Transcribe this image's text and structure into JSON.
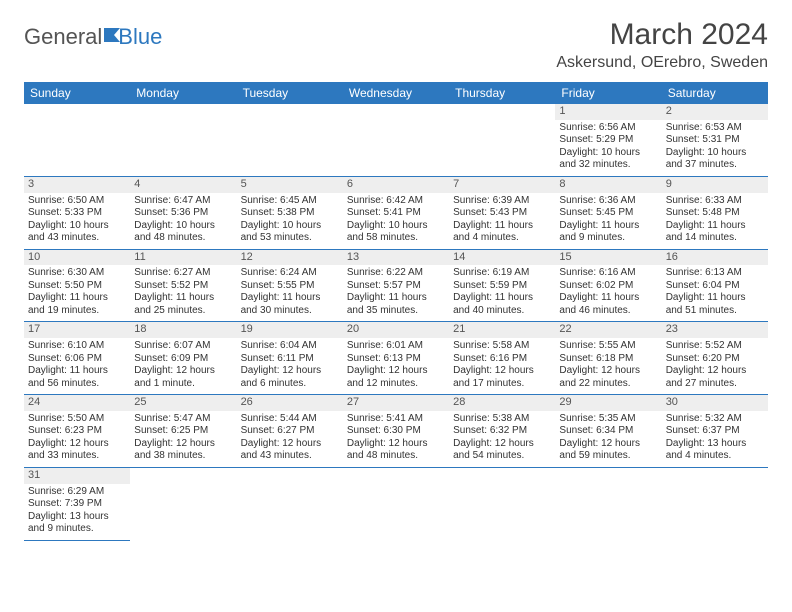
{
  "logo": {
    "text1": "General",
    "text2": "Blue"
  },
  "title": "March 2024",
  "location": "Askersund, OErebro, Sweden",
  "colors": {
    "header_bg": "#2d78bf",
    "daynum_bg": "#eeeeee",
    "border": "#2d78bf"
  },
  "weekdays": [
    "Sunday",
    "Monday",
    "Tuesday",
    "Wednesday",
    "Thursday",
    "Friday",
    "Saturday"
  ],
  "weeks": [
    [
      null,
      null,
      null,
      null,
      null,
      {
        "n": "1",
        "sr": "6:56 AM",
        "ss": "5:29 PM",
        "dl": "10 hours and 32 minutes."
      },
      {
        "n": "2",
        "sr": "6:53 AM",
        "ss": "5:31 PM",
        "dl": "10 hours and 37 minutes."
      }
    ],
    [
      {
        "n": "3",
        "sr": "6:50 AM",
        "ss": "5:33 PM",
        "dl": "10 hours and 43 minutes."
      },
      {
        "n": "4",
        "sr": "6:47 AM",
        "ss": "5:36 PM",
        "dl": "10 hours and 48 minutes."
      },
      {
        "n": "5",
        "sr": "6:45 AM",
        "ss": "5:38 PM",
        "dl": "10 hours and 53 minutes."
      },
      {
        "n": "6",
        "sr": "6:42 AM",
        "ss": "5:41 PM",
        "dl": "10 hours and 58 minutes."
      },
      {
        "n": "7",
        "sr": "6:39 AM",
        "ss": "5:43 PM",
        "dl": "11 hours and 4 minutes."
      },
      {
        "n": "8",
        "sr": "6:36 AM",
        "ss": "5:45 PM",
        "dl": "11 hours and 9 minutes."
      },
      {
        "n": "9",
        "sr": "6:33 AM",
        "ss": "5:48 PM",
        "dl": "11 hours and 14 minutes."
      }
    ],
    [
      {
        "n": "10",
        "sr": "6:30 AM",
        "ss": "5:50 PM",
        "dl": "11 hours and 19 minutes."
      },
      {
        "n": "11",
        "sr": "6:27 AM",
        "ss": "5:52 PM",
        "dl": "11 hours and 25 minutes."
      },
      {
        "n": "12",
        "sr": "6:24 AM",
        "ss": "5:55 PM",
        "dl": "11 hours and 30 minutes."
      },
      {
        "n": "13",
        "sr": "6:22 AM",
        "ss": "5:57 PM",
        "dl": "11 hours and 35 minutes."
      },
      {
        "n": "14",
        "sr": "6:19 AM",
        "ss": "5:59 PM",
        "dl": "11 hours and 40 minutes."
      },
      {
        "n": "15",
        "sr": "6:16 AM",
        "ss": "6:02 PM",
        "dl": "11 hours and 46 minutes."
      },
      {
        "n": "16",
        "sr": "6:13 AM",
        "ss": "6:04 PM",
        "dl": "11 hours and 51 minutes."
      }
    ],
    [
      {
        "n": "17",
        "sr": "6:10 AM",
        "ss": "6:06 PM",
        "dl": "11 hours and 56 minutes."
      },
      {
        "n": "18",
        "sr": "6:07 AM",
        "ss": "6:09 PM",
        "dl": "12 hours and 1 minute."
      },
      {
        "n": "19",
        "sr": "6:04 AM",
        "ss": "6:11 PM",
        "dl": "12 hours and 6 minutes."
      },
      {
        "n": "20",
        "sr": "6:01 AM",
        "ss": "6:13 PM",
        "dl": "12 hours and 12 minutes."
      },
      {
        "n": "21",
        "sr": "5:58 AM",
        "ss": "6:16 PM",
        "dl": "12 hours and 17 minutes."
      },
      {
        "n": "22",
        "sr": "5:55 AM",
        "ss": "6:18 PM",
        "dl": "12 hours and 22 minutes."
      },
      {
        "n": "23",
        "sr": "5:52 AM",
        "ss": "6:20 PM",
        "dl": "12 hours and 27 minutes."
      }
    ],
    [
      {
        "n": "24",
        "sr": "5:50 AM",
        "ss": "6:23 PM",
        "dl": "12 hours and 33 minutes."
      },
      {
        "n": "25",
        "sr": "5:47 AM",
        "ss": "6:25 PM",
        "dl": "12 hours and 38 minutes."
      },
      {
        "n": "26",
        "sr": "5:44 AM",
        "ss": "6:27 PM",
        "dl": "12 hours and 43 minutes."
      },
      {
        "n": "27",
        "sr": "5:41 AM",
        "ss": "6:30 PM",
        "dl": "12 hours and 48 minutes."
      },
      {
        "n": "28",
        "sr": "5:38 AM",
        "ss": "6:32 PM",
        "dl": "12 hours and 54 minutes."
      },
      {
        "n": "29",
        "sr": "5:35 AM",
        "ss": "6:34 PM",
        "dl": "12 hours and 59 minutes."
      },
      {
        "n": "30",
        "sr": "5:32 AM",
        "ss": "6:37 PM",
        "dl": "13 hours and 4 minutes."
      }
    ],
    [
      {
        "n": "31",
        "sr": "6:29 AM",
        "ss": "7:39 PM",
        "dl": "13 hours and 9 minutes."
      },
      null,
      null,
      null,
      null,
      null,
      null
    ]
  ],
  "labels": {
    "sunrise": "Sunrise:",
    "sunset": "Sunset:",
    "daylight": "Daylight:"
  }
}
